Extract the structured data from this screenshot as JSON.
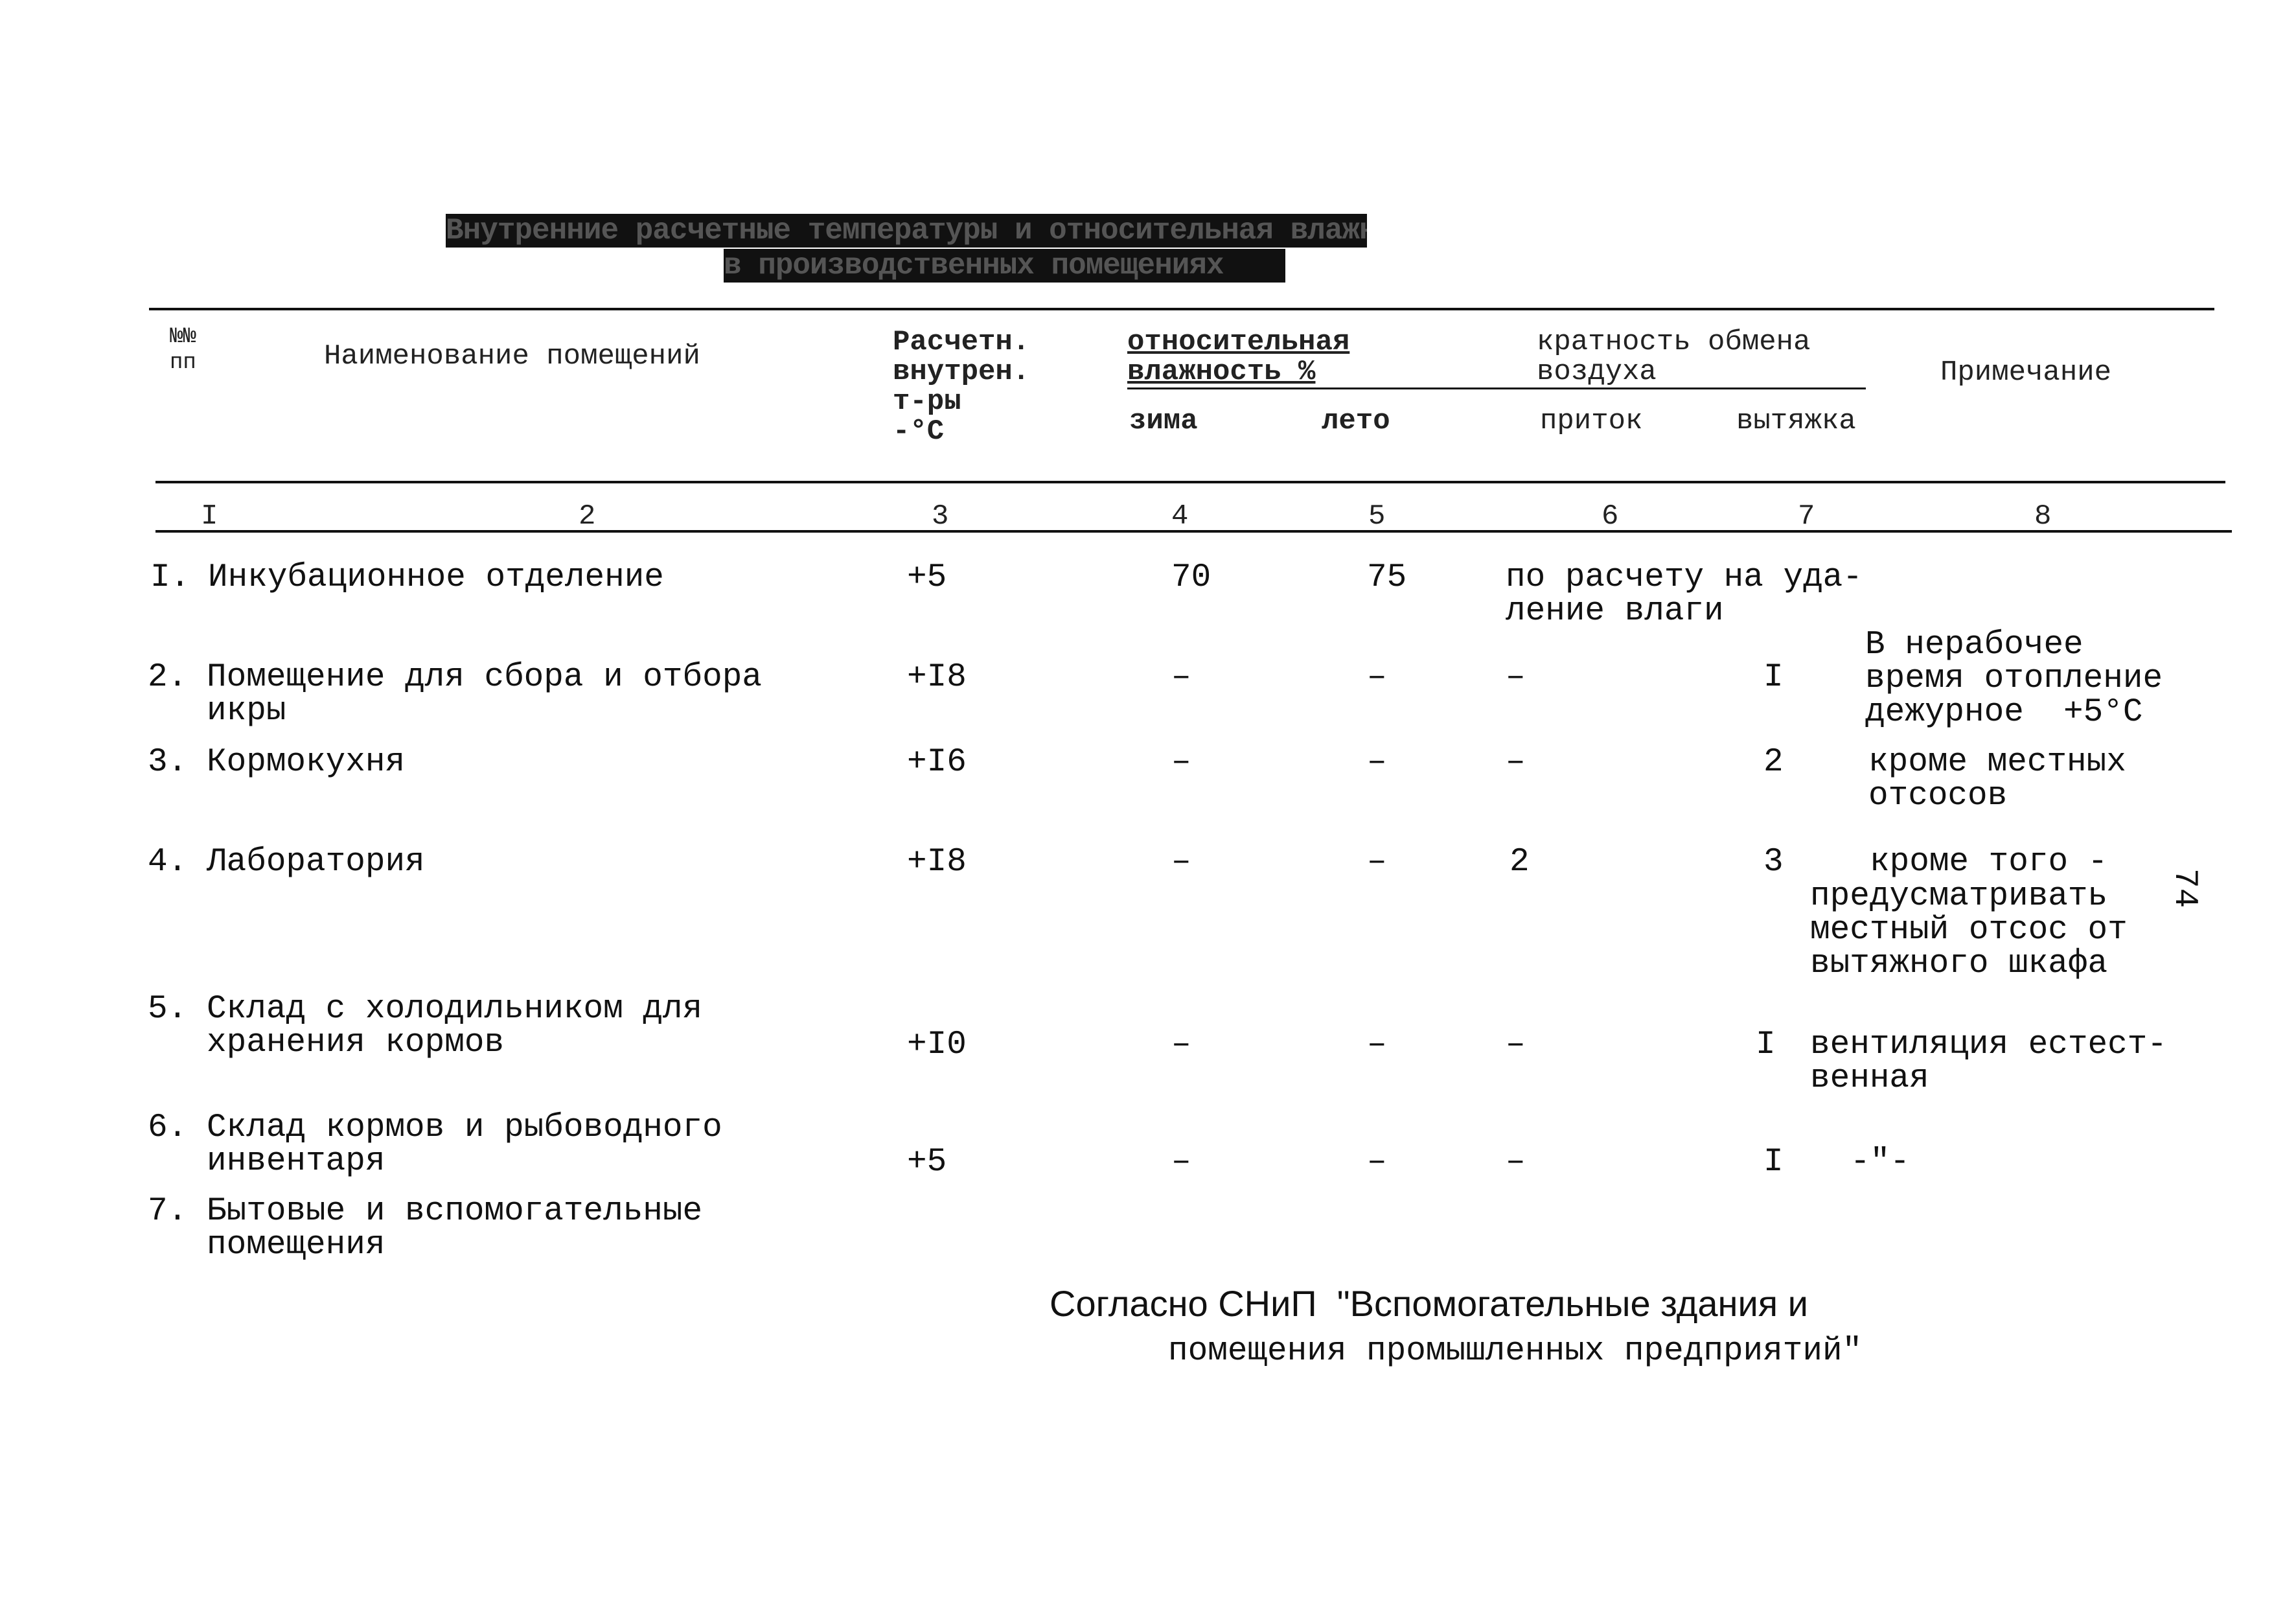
{
  "title": {
    "line1": "Внутренние расчетные температуры и относительная влажность",
    "line2": "в производственных помещениях"
  },
  "header": {
    "num": "№№\nпп",
    "name": "Наименование помещений",
    "temp": "Расчетн.\nвнутрен.\nт-ры\n-°С",
    "humidity": "относительная\nвлажность %",
    "winter": "зима",
    "summer": "лето",
    "air_exchange": "кратность обмена\nвоздуха",
    "supply": "приток",
    "exhaust": "вытяжка",
    "note": "Примечание"
  },
  "column_numbers": [
    "I",
    "2",
    "3",
    "4",
    "5",
    "6",
    "7",
    "8"
  ],
  "rows": [
    {
      "num": "I.",
      "name": "Инкубационное отделение",
      "temp": "+5",
      "winter": "70",
      "summer": "75",
      "supply": "по расчету на уда-\nление влаги",
      "exhaust": "",
      "note": ""
    },
    {
      "num": "2.",
      "name": "Помещение для сбора и отбора\nикры",
      "temp": "+I8",
      "winter": "–",
      "summer": "–",
      "supply": "–",
      "exhaust": "I",
      "note": "В нерабочее\nвремя отопление\nдежурное  +5°С"
    },
    {
      "num": "3.",
      "name": "Кормокухня",
      "temp": "+I6",
      "winter": "–",
      "summer": "–",
      "supply": "–",
      "exhaust": "2",
      "note": "кроме местных\nотсосов"
    },
    {
      "num": "4.",
      "name": "Лаборатория",
      "temp": "+I8",
      "winter": "–",
      "summer": "–",
      "supply": "2",
      "exhaust": "3",
      "note_first": "кроме того -",
      "note": "предусматривать\nместный отсос от\nвытяжного шкафа"
    },
    {
      "num": "5.",
      "name": "Склад с холодильником для\nхранения кормов",
      "temp": "+I0",
      "winter": "–",
      "summer": "–",
      "supply": "–",
      "exhaust": "I",
      "note": "вентиляция естест-\nвенная"
    },
    {
      "num": "6.",
      "name": "Склад кормов и рыбоводного\nинвентаря",
      "temp": "+5",
      "winter": "–",
      "summer": "–",
      "supply": "–",
      "exhaust": "I",
      "note": "-\"-"
    },
    {
      "num": "7.",
      "name": "Бытовые и вспомогательные\nпомещения"
    }
  ],
  "footer": {
    "line1": "Согласно СНиП  \"Вспомогательные здания и",
    "line2": "помещения промышленных предприятий\""
  },
  "page_number": "74"
}
